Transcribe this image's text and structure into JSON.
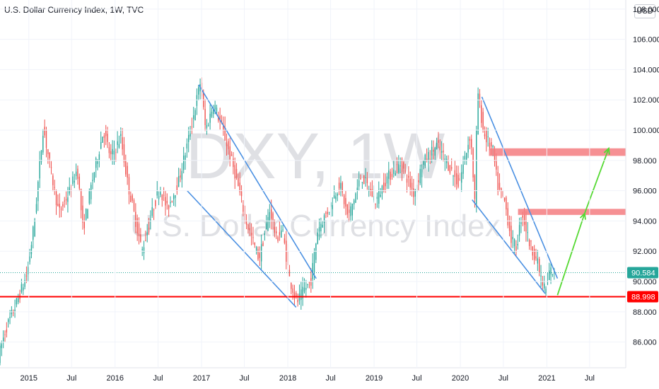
{
  "header": {
    "title": "U.S. Dollar Currency Index, 1W, TVC",
    "currency_button": "USD"
  },
  "watermark": {
    "symbol": "DXY, 1W",
    "name": "U.S. Dollar Currency Index"
  },
  "chart_data": {
    "type": "candlestick",
    "symbol": "DXY",
    "interval": "1W",
    "source": "TVC",
    "y_axis": {
      "ylim": [
        84.3,
        108.6
      ],
      "ticks": [
        "86.000",
        "88.000",
        "90.000",
        "92.000",
        "94.000",
        "96.000",
        "98.000",
        "100.000",
        "102.000",
        "104.000",
        "106.000",
        "108.000"
      ]
    },
    "x_axis": {
      "range": [
        "2014-09",
        "2021-12"
      ],
      "ticks": [
        {
          "date": "2015-01",
          "label": "2015"
        },
        {
          "date": "2015-07",
          "label": "Jul"
        },
        {
          "date": "2016-01",
          "label": "2016"
        },
        {
          "date": "2016-07",
          "label": "Jul"
        },
        {
          "date": "2017-01",
          "label": "2017"
        },
        {
          "date": "2017-07",
          "label": "Jul"
        },
        {
          "date": "2018-01",
          "label": "2018"
        },
        {
          "date": "2018-07",
          "label": "Jul"
        },
        {
          "date": "2019-01",
          "label": "2019"
        },
        {
          "date": "2019-07",
          "label": "Jul"
        },
        {
          "date": "2020-01",
          "label": "2020"
        },
        {
          "date": "2020-07",
          "label": "Jul"
        },
        {
          "date": "2021-01",
          "label": "2021"
        },
        {
          "date": "2021-07",
          "label": "Jul"
        }
      ]
    },
    "price_path": [
      [
        "2014-09-01",
        85.0
      ],
      [
        "2014-10-01",
        86.8
      ],
      [
        "2014-11-15",
        88.5
      ],
      [
        "2015-01-01",
        90.5
      ],
      [
        "2015-02-01",
        94.0
      ],
      [
        "2015-03-10",
        100.2
      ],
      [
        "2015-04-15",
        97.0
      ],
      [
        "2015-05-15",
        94.5
      ],
      [
        "2015-07-01",
        96.0
      ],
      [
        "2015-08-01",
        97.5
      ],
      [
        "2015-08-25",
        93.4
      ],
      [
        "2015-10-01",
        96.5
      ],
      [
        "2015-11-20",
        100.0
      ],
      [
        "2015-12-20",
        98.2
      ],
      [
        "2016-02-01",
        99.5
      ],
      [
        "2016-03-01",
        96.5
      ],
      [
        "2016-05-01",
        92.0
      ],
      [
        "2016-06-20",
        95.0
      ],
      [
        "2016-07-15",
        96.2
      ],
      [
        "2016-08-15",
        94.8
      ],
      [
        "2016-10-01",
        96.5
      ],
      [
        "2016-11-15",
        99.5
      ],
      [
        "2017-01-03",
        103.2
      ],
      [
        "2017-01-25",
        100.0
      ],
      [
        "2017-03-01",
        101.8
      ],
      [
        "2017-04-15",
        99.6
      ],
      [
        "2017-06-01",
        97.0
      ],
      [
        "2017-07-15",
        94.0
      ],
      [
        "2017-09-08",
        91.5
      ],
      [
        "2017-10-25",
        94.8
      ],
      [
        "2017-11-20",
        92.8
      ],
      [
        "2017-12-15",
        93.5
      ],
      [
        "2018-01-15",
        90.2
      ],
      [
        "2018-02-15",
        88.6
      ],
      [
        "2018-03-20",
        89.5
      ],
      [
        "2018-04-15",
        90.0
      ],
      [
        "2018-05-15",
        93.5
      ],
      [
        "2018-07-01",
        94.8
      ],
      [
        "2018-08-15",
        96.5
      ],
      [
        "2018-09-20",
        94.2
      ],
      [
        "2018-11-15",
        97.0
      ],
      [
        "2019-01-15",
        95.3
      ],
      [
        "2019-03-01",
        96.8
      ],
      [
        "2019-05-01",
        97.8
      ],
      [
        "2019-06-25",
        95.8
      ],
      [
        "2019-08-01",
        97.8
      ],
      [
        "2019-10-01",
        99.0
      ],
      [
        "2019-11-15",
        97.8
      ],
      [
        "2020-01-01",
        96.4
      ],
      [
        "2020-02-20",
        99.8
      ],
      [
        "2020-03-10",
        95.0
      ],
      [
        "2020-03-20",
        102.8
      ],
      [
        "2020-04-15",
        99.8
      ],
      [
        "2020-05-25",
        98.6
      ],
      [
        "2020-06-15",
        96.2
      ],
      [
        "2020-07-15",
        95.2
      ],
      [
        "2020-08-10",
        92.8
      ],
      [
        "2020-09-01",
        92.2
      ],
      [
        "2020-09-25",
        94.6
      ],
      [
        "2020-10-25",
        92.6
      ],
      [
        "2020-11-25",
        91.5
      ],
      [
        "2020-12-20",
        89.8
      ],
      [
        "2021-01-06",
        89.4
      ],
      [
        "2021-01-20",
        90.8
      ],
      [
        "2021-02-05",
        90.58
      ]
    ],
    "last_price": "90.584",
    "horizontal_line": {
      "label": "88.998",
      "value": 88.998
    },
    "annotations": {
      "trendlines": [
        {
          "from": [
            "2016-11-01",
            96.0
          ],
          "to": [
            "2018-02-05",
            88.3
          ]
        },
        {
          "from": [
            "2016-12-20",
            103.0
          ],
          "to": [
            "2018-05-01",
            90.2
          ]
        },
        {
          "from": [
            "2020-02-20",
            95.4
          ],
          "to": [
            "2020-12-25",
            89.2
          ]
        },
        {
          "from": [
            "2020-04-01",
            102.2
          ],
          "to": [
            "2021-02-15",
            90.2
          ]
        }
      ],
      "zones": [
        {
          "x_from": "2020-05-01",
          "x_to": "2021-12-01",
          "y_from": 98.3,
          "y_to": 98.8
        },
        {
          "x_from": "2020-09-01",
          "x_to": "2021-12-01",
          "y_from": 94.4,
          "y_to": 94.8
        }
      ],
      "arrows": [
        {
          "from": [
            "2021-02-15",
            89.1
          ],
          "to": [
            "2021-06-10",
            94.5
          ]
        },
        {
          "from": [
            "2021-06-10",
            94.5
          ],
          "to": [
            "2021-09-20",
            98.8
          ]
        }
      ]
    },
    "colors": {
      "up": "#26a69a",
      "down": "#ef5350",
      "support_line": "#ff0000",
      "trendline": "#4a90e2",
      "zone": "#f57c80",
      "arrow": "#55d933",
      "price_marker": "#26a69a",
      "level_marker": "#ff0000"
    }
  }
}
